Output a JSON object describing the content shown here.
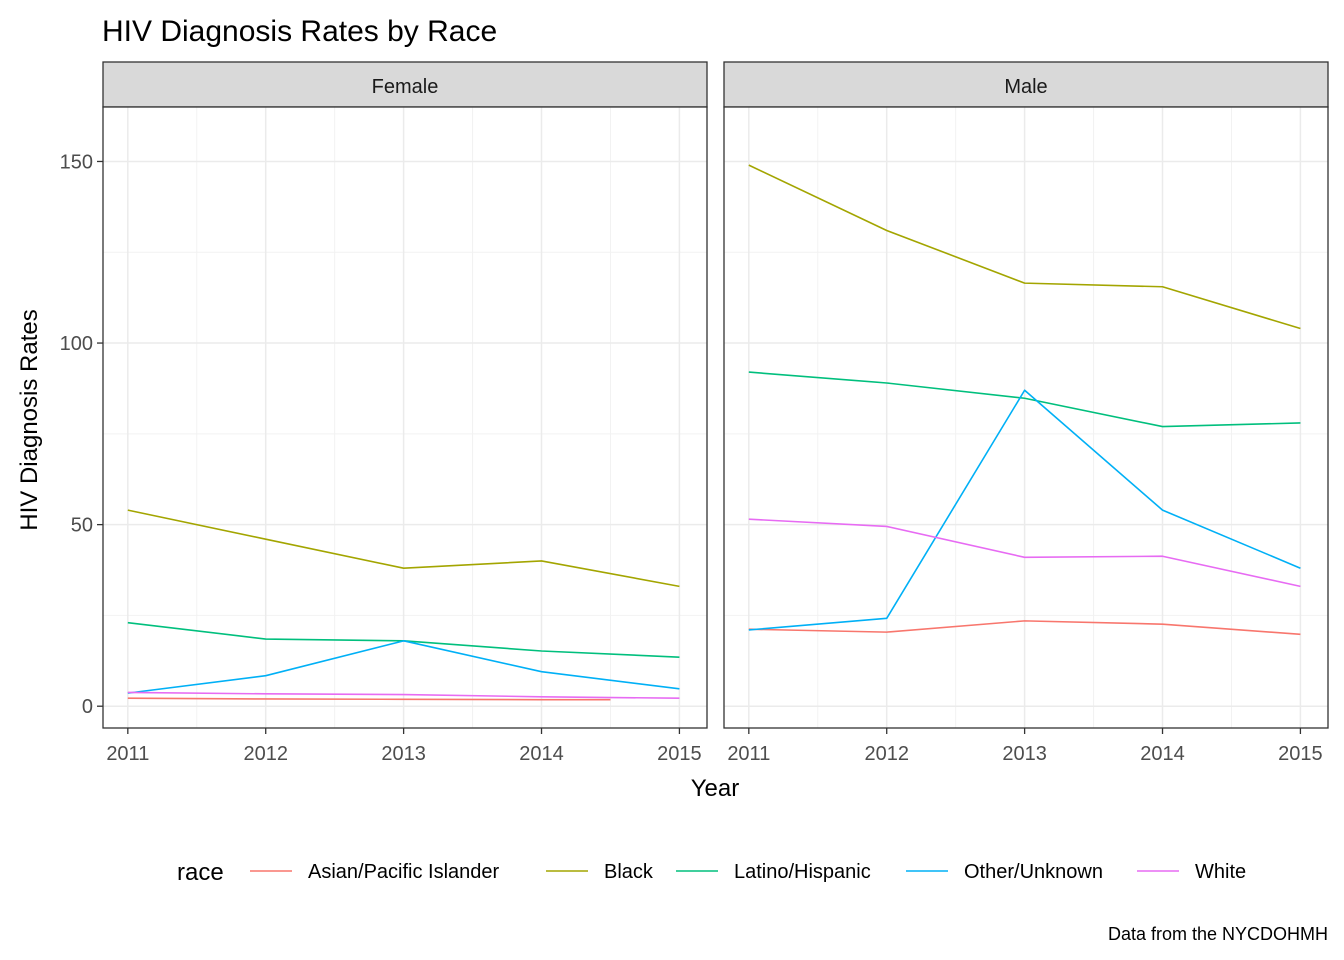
{
  "chart_data": {
    "type": "line",
    "title": "HIV Diagnosis Rates by Race",
    "xlabel": "Year",
    "ylabel": "HIV Diagnosis Rates",
    "caption": "Data from the NYCDOHMH",
    "legend_title": "race",
    "legend_position": "bottom",
    "grid": true,
    "x": [
      2011,
      2012,
      2013,
      2014,
      2015
    ],
    "x_ticks": [
      "2011",
      "2012",
      "2013",
      "2014",
      "2015"
    ],
    "y_ticks": [
      "0",
      "50",
      "100",
      "150"
    ],
    "ylim": [
      -6,
      165
    ],
    "xlim": [
      2010.82,
      2015.2
    ],
    "colors": {
      "Asian/Pacific Islander": "#F8766D",
      "Black": "#A3A500",
      "Latino/Hispanic": "#00BF7D",
      "Other/Unknown": "#00B0F6",
      "White": "#E76BF3"
    },
    "legend_entries": [
      "Asian/Pacific Islander",
      "Black",
      "Latino/Hispanic",
      "Other/Unknown",
      "White"
    ],
    "panels": [
      {
        "name": "Female",
        "series": [
          {
            "name": "Asian/Pacific Islander",
            "values": [
              2.2,
              2.0,
              1.9,
              1.8,
              null
            ]
          },
          {
            "name": "Black",
            "values": [
              54,
              46,
              38,
              40,
              33
            ]
          },
          {
            "name": "Latino/Hispanic",
            "values": [
              23,
              18.5,
              18,
              15.2,
              13.5
            ]
          },
          {
            "name": "Other/Unknown",
            "values": [
              3.6,
              8.4,
              18,
              9.5,
              4.8
            ]
          },
          {
            "name": "White",
            "values": [
              3.8,
              3.4,
              3.2,
              2.6,
              2.2
            ]
          }
        ]
      },
      {
        "name": "Male",
        "series": [
          {
            "name": "Asian/Pacific Islander",
            "values": [
              21.2,
              20.4,
              23.5,
              22.6,
              19.8
            ]
          },
          {
            "name": "Black",
            "values": [
              149,
              131,
              116.5,
              115.5,
              104
            ]
          },
          {
            "name": "Latino/Hispanic",
            "values": [
              92,
              89,
              84.8,
              77,
              78
            ]
          },
          {
            "name": "Other/Unknown",
            "values": [
              21,
              24.2,
              87,
              54,
              38
            ]
          },
          {
            "name": "White",
            "values": [
              51.5,
              49.5,
              41,
              41.3,
              33
            ]
          }
        ]
      }
    ]
  }
}
